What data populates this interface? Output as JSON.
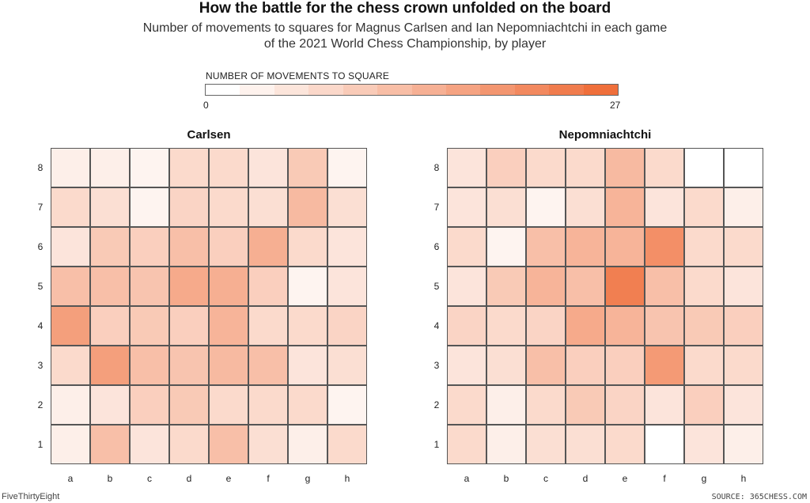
{
  "title": "How the battle for the chess crown unfolded on the board",
  "subtitle_line1": "Number of movements to squares for Magnus Carlsen and Ian Nepomniachtchi in each game",
  "subtitle_line2": "of the 2021 World Chess Championship, by player",
  "legend": {
    "title": "NUMBER OF MOVEMENTS TO SQUARE",
    "min": "0",
    "max": "27",
    "color_low": "#ffffff",
    "color_high": "#ef6f3b",
    "segments": 12
  },
  "footer": {
    "left": "FiveThirtyEight",
    "right": "SOURCE: 365CHESS.COM"
  },
  "chart_data": {
    "type": "heatmap",
    "files": [
      "a",
      "b",
      "c",
      "d",
      "e",
      "f",
      "g",
      "h"
    ],
    "ranks": [
      "8",
      "7",
      "6",
      "5",
      "4",
      "3",
      "2",
      "1"
    ],
    "scale": [
      0,
      27
    ],
    "panels": [
      {
        "title": "Carlsen",
        "grid": [
          [
            3,
            3,
            2,
            7,
            7,
            5,
            10,
            2
          ],
          [
            7,
            6,
            2,
            8,
            7,
            6,
            13,
            6
          ],
          [
            5,
            10,
            9,
            12,
            9,
            15,
            7,
            5
          ],
          [
            12,
            12,
            11,
            16,
            15,
            9,
            2,
            5
          ],
          [
            18,
            9,
            10,
            9,
            14,
            7,
            7,
            8
          ],
          [
            7,
            18,
            12,
            11,
            13,
            12,
            5,
            6
          ],
          [
            3,
            5,
            9,
            10,
            7,
            7,
            7,
            2
          ],
          [
            3,
            12,
            5,
            7,
            12,
            6,
            3,
            7
          ]
        ]
      },
      {
        "title": "Nepomniachtchi",
        "grid": [
          [
            5,
            9,
            7,
            7,
            13,
            7,
            0,
            0
          ],
          [
            5,
            6,
            2,
            6,
            14,
            5,
            7,
            3
          ],
          [
            7,
            2,
            12,
            14,
            14,
            21,
            7,
            7
          ],
          [
            5,
            10,
            14,
            12,
            24,
            12,
            7,
            5
          ],
          [
            8,
            7,
            8,
            16,
            14,
            11,
            10,
            9
          ],
          [
            5,
            6,
            12,
            9,
            9,
            19,
            7,
            7
          ],
          [
            7,
            3,
            7,
            10,
            8,
            5,
            9,
            5
          ],
          [
            7,
            3,
            6,
            6,
            7,
            0,
            5,
            3
          ]
        ]
      }
    ]
  }
}
